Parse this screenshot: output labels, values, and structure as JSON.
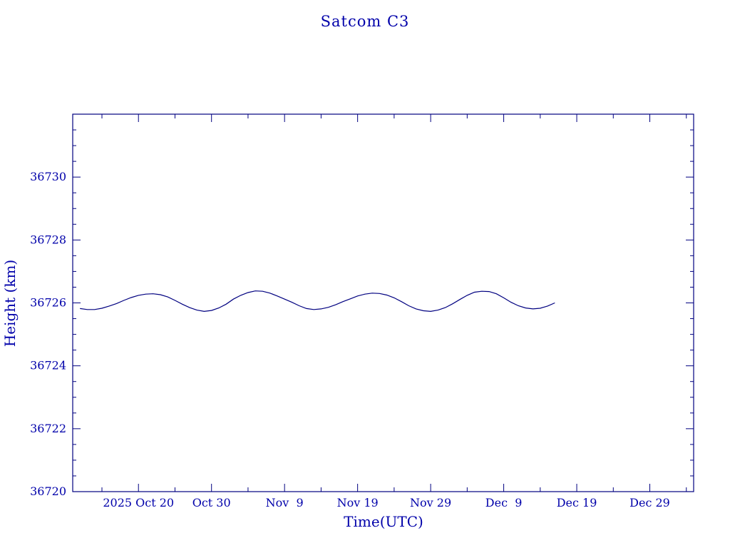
{
  "chart_data": {
    "type": "line",
    "title": "Satcom C3",
    "xlabel": "Time(UTC)",
    "ylabel": "Height (km)",
    "ylim": [
      36720,
      36732
    ],
    "xlim": [
      "2025-10-11",
      "2026-01-04"
    ],
    "grid": false,
    "x_ticks": [
      {
        "date": "2025-10-20",
        "label": "2025 Oct 20"
      },
      {
        "date": "2025-10-30",
        "label": "Oct 30"
      },
      {
        "date": "2025-11-09",
        "label": "Nov  9"
      },
      {
        "date": "2025-11-19",
        "label": "Nov 19"
      },
      {
        "date": "2025-11-29",
        "label": "Nov 29"
      },
      {
        "date": "2025-12-09",
        "label": "Dec  9"
      },
      {
        "date": "2025-12-19",
        "label": "Dec 19"
      },
      {
        "date": "2025-12-29",
        "label": "Dec 29"
      }
    ],
    "y_ticks": [
      36720,
      36722,
      36724,
      36726,
      36728,
      36730
    ],
    "series": [
      {
        "color": "#000080",
        "x": [
          "2025-10-12",
          "2025-10-13",
          "2025-10-14",
          "2025-10-15",
          "2025-10-16",
          "2025-10-17",
          "2025-10-18",
          "2025-10-19",
          "2025-10-20",
          "2025-10-21",
          "2025-10-22",
          "2025-10-23",
          "2025-10-24",
          "2025-10-25",
          "2025-10-26",
          "2025-10-27",
          "2025-10-28",
          "2025-10-29",
          "2025-10-30",
          "2025-10-31",
          "2025-11-01",
          "2025-11-02",
          "2025-11-03",
          "2025-11-04",
          "2025-11-05",
          "2025-11-06",
          "2025-11-07",
          "2025-11-08",
          "2025-11-09",
          "2025-11-10",
          "2025-11-11",
          "2025-11-12",
          "2025-11-13",
          "2025-11-14",
          "2025-11-15",
          "2025-11-16",
          "2025-11-17",
          "2025-11-18",
          "2025-11-19",
          "2025-11-20",
          "2025-11-21",
          "2025-11-22",
          "2025-11-23",
          "2025-11-24",
          "2025-11-25",
          "2025-11-26",
          "2025-11-27",
          "2025-11-28",
          "2025-11-29",
          "2025-11-30",
          "2025-12-01",
          "2025-12-02",
          "2025-12-03",
          "2025-12-04",
          "2025-12-05",
          "2025-12-06",
          "2025-12-07",
          "2025-12-08",
          "2025-12-09",
          "2025-12-10",
          "2025-12-11",
          "2025-12-12",
          "2025-12-13",
          "2025-12-14",
          "2025-12-15",
          "2025-12-16"
        ],
        "y": [
          36725.82,
          36725.79,
          36725.79,
          36725.83,
          36725.9,
          36725.98,
          36726.08,
          36726.17,
          36726.24,
          36726.28,
          36726.29,
          36726.26,
          36726.19,
          36726.08,
          36725.96,
          36725.85,
          36725.77,
          36725.73,
          36725.76,
          36725.84,
          36725.96,
          36726.12,
          36726.24,
          36726.33,
          36726.38,
          36726.37,
          36726.31,
          36726.22,
          36726.12,
          36726.02,
          36725.91,
          36725.82,
          36725.79,
          36725.81,
          36725.86,
          36725.94,
          36726.04,
          36726.13,
          36726.22,
          36726.28,
          36726.31,
          36726.3,
          36726.25,
          36726.16,
          36726.04,
          36725.91,
          36725.81,
          36725.75,
          36725.73,
          36725.77,
          36725.85,
          36725.97,
          36726.11,
          36726.24,
          36726.34,
          36726.37,
          36726.36,
          36726.29,
          36726.16,
          36726.02,
          36725.91,
          36725.84,
          36725.81,
          36725.83,
          36725.9,
          36726.0
        ]
      }
    ]
  }
}
